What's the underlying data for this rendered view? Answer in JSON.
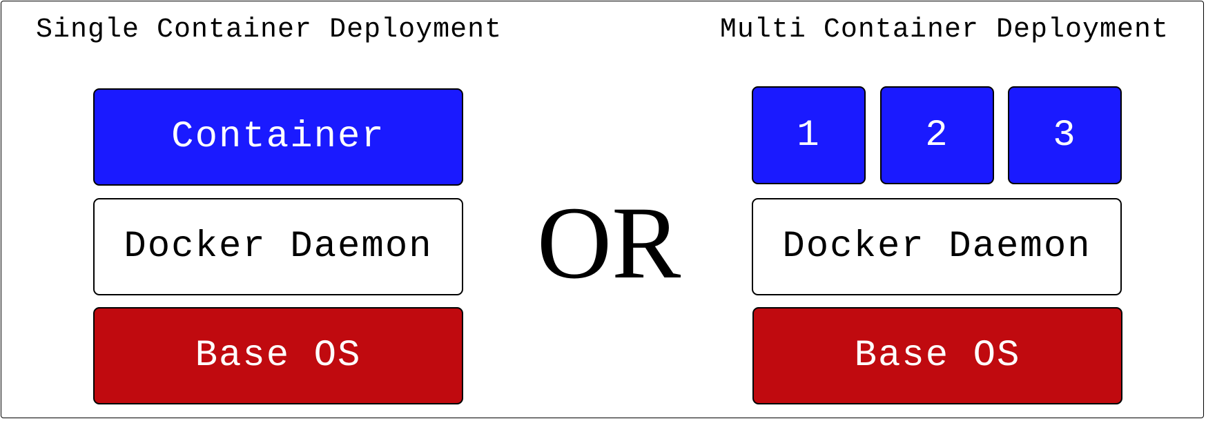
{
  "single": {
    "title": "Single Container Deployment",
    "container_label": "Container",
    "daemon_label": "Docker Daemon",
    "os_label": "Base OS"
  },
  "separator": "OR",
  "multi": {
    "title": "Multi Container Deployment",
    "containers": [
      "1",
      "2",
      "3"
    ],
    "daemon_label": "Docker Daemon",
    "os_label": "Base OS"
  },
  "colors": {
    "container": "#1a1aff",
    "daemon": "#ffffff",
    "base_os": "#c00a0f",
    "border": "#000000"
  }
}
